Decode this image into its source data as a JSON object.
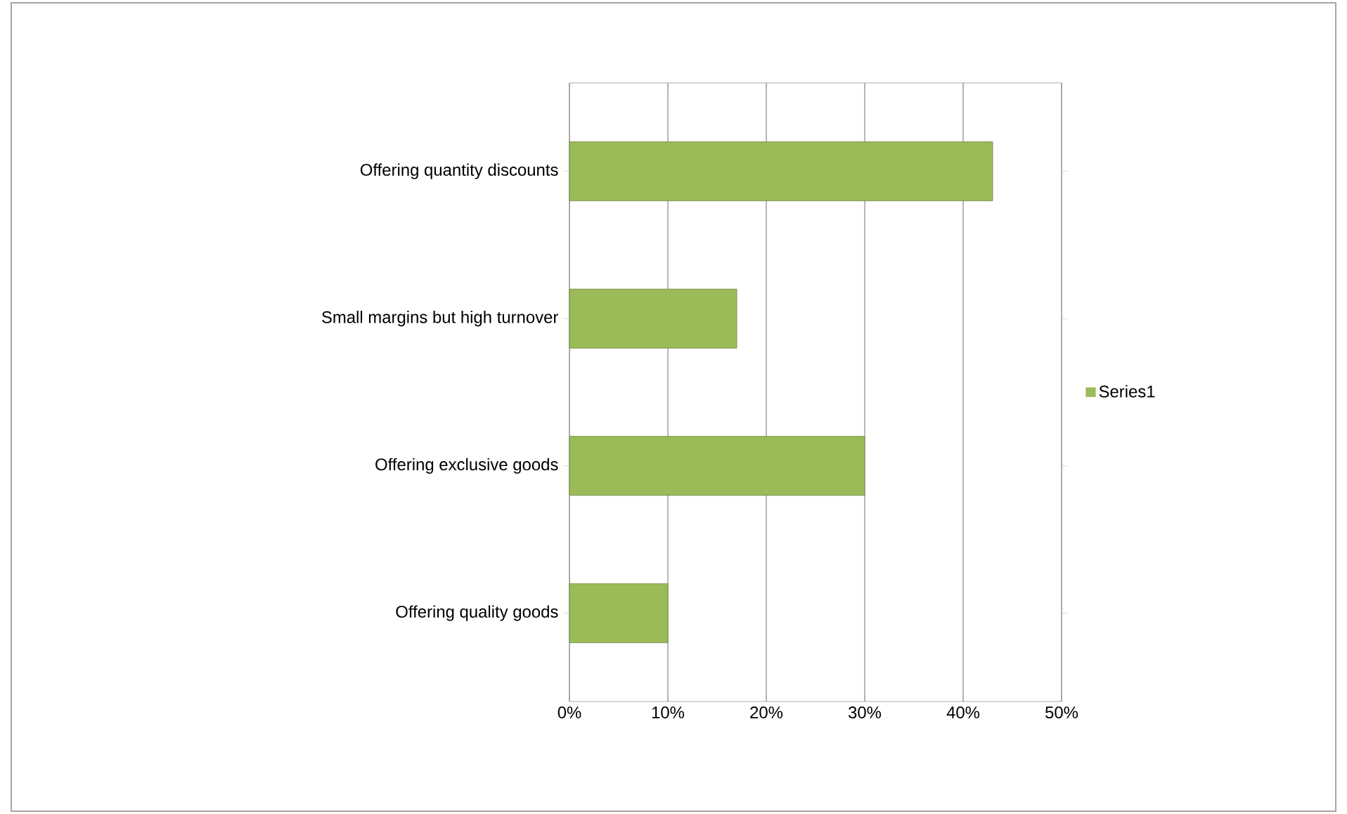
{
  "chart_data": {
    "type": "bar",
    "orientation": "horizontal",
    "categories": [
      "Offering quantity discounts",
      "Small margins but high turnover",
      "Offering exclusive goods",
      "Offering quality goods"
    ],
    "series": [
      {
        "name": "Series1",
        "color": "#9bbb59",
        "values": [
          43,
          17,
          30,
          10
        ]
      }
    ],
    "xlim": [
      0,
      50
    ],
    "xticks": [
      {
        "value": 0,
        "label": "0%"
      },
      {
        "value": 10,
        "label": "10%"
      },
      {
        "value": 20,
        "label": "20%"
      },
      {
        "value": 30,
        "label": "30%"
      },
      {
        "value": 40,
        "label": "40%"
      },
      {
        "value": 50,
        "label": "50%"
      }
    ],
    "grid": "x",
    "legend": "right"
  }
}
